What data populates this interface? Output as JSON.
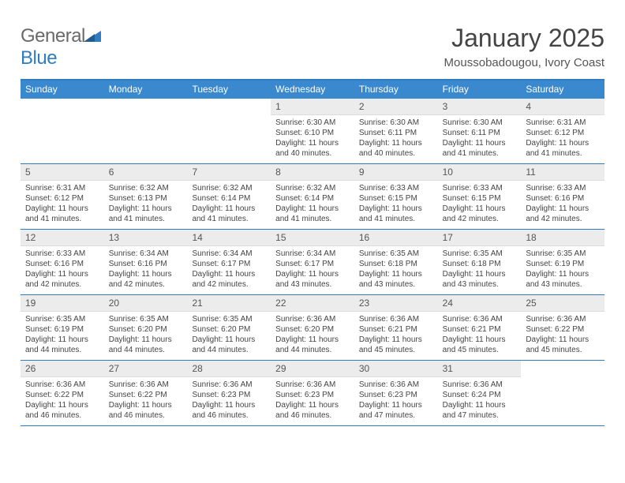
{
  "brand": {
    "first": "General",
    "second": "Blue",
    "accent": "#2f7cc0",
    "gray": "#6a6a6a"
  },
  "title": "January 2025",
  "location": "Moussobadougou, Ivory Coast",
  "colors": {
    "header_bar": "#3a89cf",
    "rule": "#2f7cc0",
    "cell_num_bg": "#ececec",
    "text": "#444444",
    "background": "#ffffff"
  },
  "daynames": [
    "Sunday",
    "Monday",
    "Tuesday",
    "Wednesday",
    "Thursday",
    "Friday",
    "Saturday"
  ],
  "weeks": [
    [
      null,
      null,
      null,
      {
        "n": "1",
        "sunrise": "6:30 AM",
        "sunset": "6:10 PM",
        "daylight": "11 hours and 40 minutes."
      },
      {
        "n": "2",
        "sunrise": "6:30 AM",
        "sunset": "6:11 PM",
        "daylight": "11 hours and 40 minutes."
      },
      {
        "n": "3",
        "sunrise": "6:30 AM",
        "sunset": "6:11 PM",
        "daylight": "11 hours and 41 minutes."
      },
      {
        "n": "4",
        "sunrise": "6:31 AM",
        "sunset": "6:12 PM",
        "daylight": "11 hours and 41 minutes."
      }
    ],
    [
      {
        "n": "5",
        "sunrise": "6:31 AM",
        "sunset": "6:12 PM",
        "daylight": "11 hours and 41 minutes."
      },
      {
        "n": "6",
        "sunrise": "6:32 AM",
        "sunset": "6:13 PM",
        "daylight": "11 hours and 41 minutes."
      },
      {
        "n": "7",
        "sunrise": "6:32 AM",
        "sunset": "6:14 PM",
        "daylight": "11 hours and 41 minutes."
      },
      {
        "n": "8",
        "sunrise": "6:32 AM",
        "sunset": "6:14 PM",
        "daylight": "11 hours and 41 minutes."
      },
      {
        "n": "9",
        "sunrise": "6:33 AM",
        "sunset": "6:15 PM",
        "daylight": "11 hours and 41 minutes."
      },
      {
        "n": "10",
        "sunrise": "6:33 AM",
        "sunset": "6:15 PM",
        "daylight": "11 hours and 42 minutes."
      },
      {
        "n": "11",
        "sunrise": "6:33 AM",
        "sunset": "6:16 PM",
        "daylight": "11 hours and 42 minutes."
      }
    ],
    [
      {
        "n": "12",
        "sunrise": "6:33 AM",
        "sunset": "6:16 PM",
        "daylight": "11 hours and 42 minutes."
      },
      {
        "n": "13",
        "sunrise": "6:34 AM",
        "sunset": "6:16 PM",
        "daylight": "11 hours and 42 minutes."
      },
      {
        "n": "14",
        "sunrise": "6:34 AM",
        "sunset": "6:17 PM",
        "daylight": "11 hours and 42 minutes."
      },
      {
        "n": "15",
        "sunrise": "6:34 AM",
        "sunset": "6:17 PM",
        "daylight": "11 hours and 43 minutes."
      },
      {
        "n": "16",
        "sunrise": "6:35 AM",
        "sunset": "6:18 PM",
        "daylight": "11 hours and 43 minutes."
      },
      {
        "n": "17",
        "sunrise": "6:35 AM",
        "sunset": "6:18 PM",
        "daylight": "11 hours and 43 minutes."
      },
      {
        "n": "18",
        "sunrise": "6:35 AM",
        "sunset": "6:19 PM",
        "daylight": "11 hours and 43 minutes."
      }
    ],
    [
      {
        "n": "19",
        "sunrise": "6:35 AM",
        "sunset": "6:19 PM",
        "daylight": "11 hours and 44 minutes."
      },
      {
        "n": "20",
        "sunrise": "6:35 AM",
        "sunset": "6:20 PM",
        "daylight": "11 hours and 44 minutes."
      },
      {
        "n": "21",
        "sunrise": "6:35 AM",
        "sunset": "6:20 PM",
        "daylight": "11 hours and 44 minutes."
      },
      {
        "n": "22",
        "sunrise": "6:36 AM",
        "sunset": "6:20 PM",
        "daylight": "11 hours and 44 minutes."
      },
      {
        "n": "23",
        "sunrise": "6:36 AM",
        "sunset": "6:21 PM",
        "daylight": "11 hours and 45 minutes."
      },
      {
        "n": "24",
        "sunrise": "6:36 AM",
        "sunset": "6:21 PM",
        "daylight": "11 hours and 45 minutes."
      },
      {
        "n": "25",
        "sunrise": "6:36 AM",
        "sunset": "6:22 PM",
        "daylight": "11 hours and 45 minutes."
      }
    ],
    [
      {
        "n": "26",
        "sunrise": "6:36 AM",
        "sunset": "6:22 PM",
        "daylight": "11 hours and 46 minutes."
      },
      {
        "n": "27",
        "sunrise": "6:36 AM",
        "sunset": "6:22 PM",
        "daylight": "11 hours and 46 minutes."
      },
      {
        "n": "28",
        "sunrise": "6:36 AM",
        "sunset": "6:23 PM",
        "daylight": "11 hours and 46 minutes."
      },
      {
        "n": "29",
        "sunrise": "6:36 AM",
        "sunset": "6:23 PM",
        "daylight": "11 hours and 46 minutes."
      },
      {
        "n": "30",
        "sunrise": "6:36 AM",
        "sunset": "6:23 PM",
        "daylight": "11 hours and 47 minutes."
      },
      {
        "n": "31",
        "sunrise": "6:36 AM",
        "sunset": "6:24 PM",
        "daylight": "11 hours and 47 minutes."
      },
      null
    ]
  ],
  "labels": {
    "sunrise": "Sunrise: ",
    "sunset": "Sunset: ",
    "daylight": "Daylight: "
  }
}
